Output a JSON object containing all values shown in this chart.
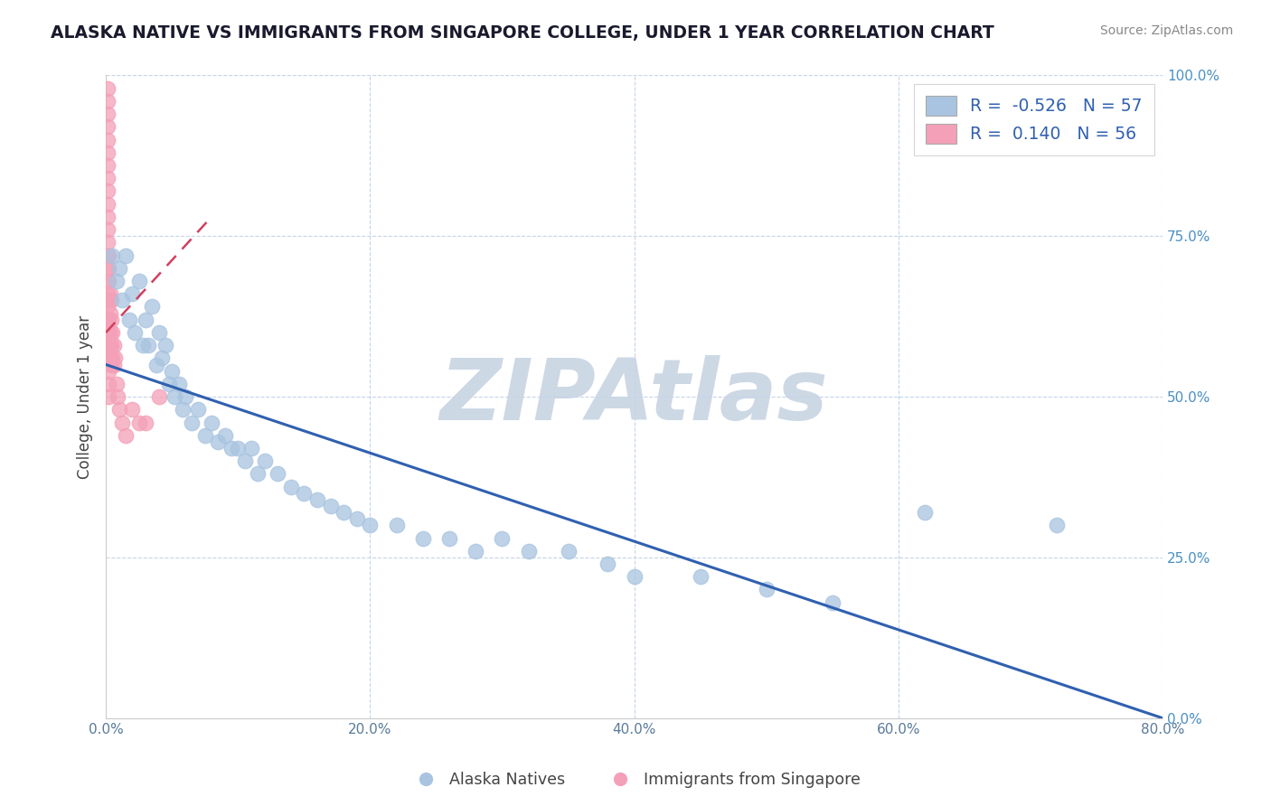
{
  "title": "ALASKA NATIVE VS IMMIGRANTS FROM SINGAPORE COLLEGE, UNDER 1 YEAR CORRELATION CHART",
  "source": "Source: ZipAtlas.com",
  "ylabel": "College, Under 1 year",
  "xlim": [
    0.0,
    0.8
  ],
  "ylim": [
    0.0,
    1.0
  ],
  "xticks": [
    0.0,
    0.2,
    0.4,
    0.6,
    0.8
  ],
  "xtick_labels": [
    "0.0%",
    "20.0%",
    "40.0%",
    "60.0%",
    "80.0%"
  ],
  "yticks": [
    0.0,
    0.25,
    0.5,
    0.75,
    1.0
  ],
  "ytick_labels": [
    "0.0%",
    "25.0%",
    "50.0%",
    "75.0%",
    "100.0%"
  ],
  "blue_R": -0.526,
  "blue_N": 57,
  "pink_R": 0.14,
  "pink_N": 56,
  "blue_color": "#a8c4e0",
  "pink_color": "#f4a0b8",
  "blue_line_color": "#3060b0",
  "pink_line_color": "#d04060",
  "watermark": "ZIPAtlas",
  "watermark_color": "#cdd8e5",
  "background_color": "#ffffff",
  "blue_scatter_x": [
    0.005,
    0.008,
    0.01,
    0.012,
    0.015,
    0.018,
    0.02,
    0.022,
    0.025,
    0.028,
    0.03,
    0.032,
    0.035,
    0.038,
    0.04,
    0.042,
    0.045,
    0.048,
    0.05,
    0.052,
    0.055,
    0.058,
    0.06,
    0.065,
    0.07,
    0.075,
    0.08,
    0.085,
    0.09,
    0.095,
    0.1,
    0.105,
    0.11,
    0.115,
    0.12,
    0.13,
    0.14,
    0.15,
    0.16,
    0.17,
    0.18,
    0.19,
    0.2,
    0.22,
    0.24,
    0.26,
    0.28,
    0.3,
    0.32,
    0.35,
    0.38,
    0.4,
    0.45,
    0.5,
    0.55,
    0.62,
    0.72
  ],
  "blue_scatter_y": [
    0.72,
    0.68,
    0.7,
    0.65,
    0.72,
    0.62,
    0.66,
    0.6,
    0.68,
    0.58,
    0.62,
    0.58,
    0.64,
    0.55,
    0.6,
    0.56,
    0.58,
    0.52,
    0.54,
    0.5,
    0.52,
    0.48,
    0.5,
    0.46,
    0.48,
    0.44,
    0.46,
    0.43,
    0.44,
    0.42,
    0.42,
    0.4,
    0.42,
    0.38,
    0.4,
    0.38,
    0.36,
    0.35,
    0.34,
    0.33,
    0.32,
    0.31,
    0.3,
    0.3,
    0.28,
    0.28,
    0.26,
    0.28,
    0.26,
    0.26,
    0.24,
    0.22,
    0.22,
    0.2,
    0.18,
    0.32,
    0.3
  ],
  "pink_scatter_x": [
    0.001,
    0.001,
    0.001,
    0.001,
    0.001,
    0.001,
    0.001,
    0.001,
    0.001,
    0.001,
    0.001,
    0.001,
    0.001,
    0.001,
    0.001,
    0.001,
    0.001,
    0.001,
    0.001,
    0.001,
    0.001,
    0.001,
    0.002,
    0.002,
    0.002,
    0.002,
    0.002,
    0.002,
    0.002,
    0.002,
    0.002,
    0.002,
    0.002,
    0.003,
    0.003,
    0.003,
    0.003,
    0.003,
    0.004,
    0.004,
    0.004,
    0.004,
    0.005,
    0.005,
    0.006,
    0.006,
    0.007,
    0.008,
    0.009,
    0.01,
    0.012,
    0.015,
    0.02,
    0.025,
    0.03,
    0.04
  ],
  "pink_scatter_y": [
    0.98,
    0.96,
    0.94,
    0.92,
    0.9,
    0.88,
    0.86,
    0.84,
    0.82,
    0.8,
    0.78,
    0.76,
    0.74,
    0.72,
    0.7,
    0.68,
    0.66,
    0.64,
    0.62,
    0.6,
    0.58,
    0.56,
    0.72,
    0.7,
    0.68,
    0.65,
    0.62,
    0.6,
    0.58,
    0.56,
    0.54,
    0.52,
    0.5,
    0.66,
    0.63,
    0.6,
    0.58,
    0.56,
    0.65,
    0.62,
    0.58,
    0.55,
    0.6,
    0.56,
    0.58,
    0.55,
    0.56,
    0.52,
    0.5,
    0.48,
    0.46,
    0.44,
    0.48,
    0.46,
    0.46,
    0.5
  ],
  "blue_line_x0": 0.0,
  "blue_line_y0": 0.55,
  "blue_line_x1": 0.8,
  "blue_line_y1": 0.0,
  "pink_line_x0": 0.0,
  "pink_line_y0": 0.6,
  "pink_line_x1": 0.08,
  "pink_line_y1": 0.78
}
